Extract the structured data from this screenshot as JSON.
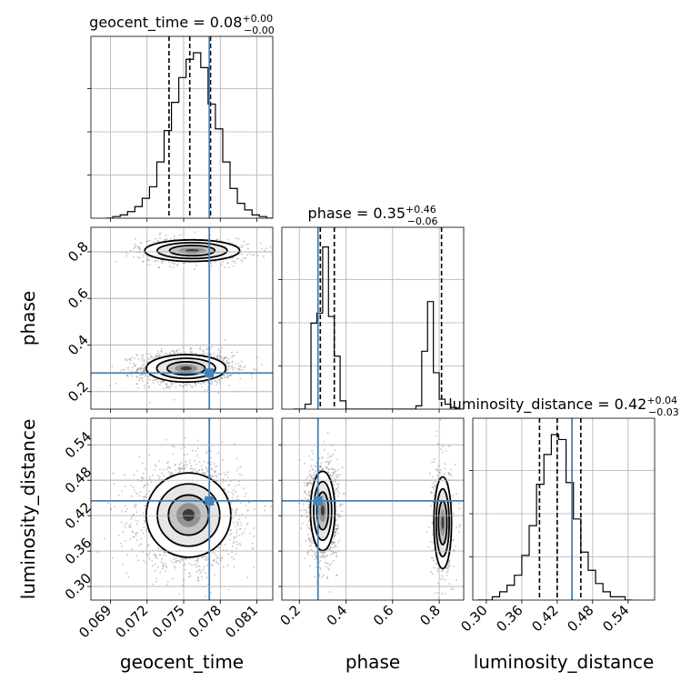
{
  "chart_data": {
    "type": "corner",
    "parameters": [
      "geocent_time",
      "phase",
      "luminosity_distance"
    ],
    "truths": {
      "geocent_time": 0.0771,
      "phase": 0.28,
      "luminosity_distance": 0.445
    },
    "titles": [
      {
        "param": "geocent_time",
        "label": "geocent_time = 0.08",
        "sup": "+0.00",
        "sub": "−0.00"
      },
      {
        "param": "phase",
        "label": "phase = 0.35",
        "sup": "+0.46",
        "sub": "−0.06"
      },
      {
        "param": "luminosity_distance",
        "label": "luminosity_distance = 0.42",
        "sup": "+0.04",
        "sub": "−0.03"
      }
    ],
    "axis_labels": {
      "x": [
        "geocent_time",
        "phase",
        "luminosity_distance"
      ],
      "y": [
        "phase",
        "luminosity_distance"
      ]
    },
    "ranges": {
      "geocent_time": [
        0.0674,
        0.0823
      ],
      "phase": [
        0.125,
        0.905
      ],
      "luminosity_distance": [
        0.277,
        0.585
      ]
    },
    "ticks": {
      "geocent_time": [
        "0.069",
        "0.072",
        "0.075",
        "0.078",
        "0.081"
      ],
      "phase": [
        "0.2",
        "0.4",
        "0.6",
        "0.8"
      ],
      "luminosity_distance": [
        "0.30",
        "0.36",
        "0.42",
        "0.48",
        "0.54"
      ]
    },
    "quantiles": {
      "geocent_time": [
        0.0738,
        0.0755,
        0.0772
      ],
      "phase": [
        0.29,
        0.35,
        0.81
      ],
      "luminosity_distance": [
        0.39,
        0.42,
        0.46
      ]
    },
    "histograms": {
      "geocent_time": {
        "start": 0.0686,
        "step": 0.0006,
        "counts": [
          0.0,
          0.01,
          0.02,
          0.04,
          0.07,
          0.12,
          0.19,
          0.34,
          0.53,
          0.7,
          0.85,
          0.96,
          1.0,
          0.91,
          0.69,
          0.54,
          0.34,
          0.18,
          0.09,
          0.05,
          0.02,
          0.01,
          0.0
        ]
      },
      "phase": {
        "start": 0.175,
        "step": 0.025,
        "counts": [
          0,
          0,
          0.03,
          0.52,
          0.58,
          0.98,
          0.56,
          0.32,
          0.05,
          0,
          0,
          0,
          0,
          0,
          0,
          0,
          0,
          0,
          0,
          0,
          0,
          0.02,
          0.35,
          0.65,
          0.22,
          0.06,
          0.03,
          0.01,
          0
        ]
      },
      "luminosity_distance": {
        "start": 0.285,
        "step": 0.0125,
        "counts": [
          0.0,
          0.0,
          0.02,
          0.05,
          0.09,
          0.15,
          0.27,
          0.45,
          0.7,
          0.88,
          1.0,
          0.97,
          0.71,
          0.49,
          0.29,
          0.18,
          0.1,
          0.05,
          0.02,
          0.02,
          0.0
        ]
      }
    },
    "samples_2d": {
      "geocent_time_vs_phase": {
        "clusters": [
          {
            "cx": 0.0752,
            "cy": 0.3,
            "sx": 0.00155,
            "sy": 0.028,
            "weight": 0.72
          },
          {
            "cx": 0.0757,
            "cy": 0.805,
            "sx": 0.00185,
            "sy": 0.022,
            "weight": 0.28
          }
        ]
      },
      "geocent_time_vs_luminosity_distance": {
        "clusters": [
          {
            "cx": 0.0754,
            "cy": 0.421,
            "sx": 0.00165,
            "sy": 0.034,
            "weight": 1.0
          }
        ]
      },
      "phase_vs_luminosity_distance": {
        "clusters": [
          {
            "cx": 0.3,
            "cy": 0.428,
            "sx": 0.025,
            "sy": 0.032,
            "weight": 0.7
          },
          {
            "cx": 0.815,
            "cy": 0.408,
            "sx": 0.018,
            "sy": 0.037,
            "weight": 0.3
          }
        ]
      }
    },
    "grid": true,
    "colors": {
      "truth": "#4682b4",
      "hist": "#000000",
      "scatter": "#808080"
    }
  }
}
